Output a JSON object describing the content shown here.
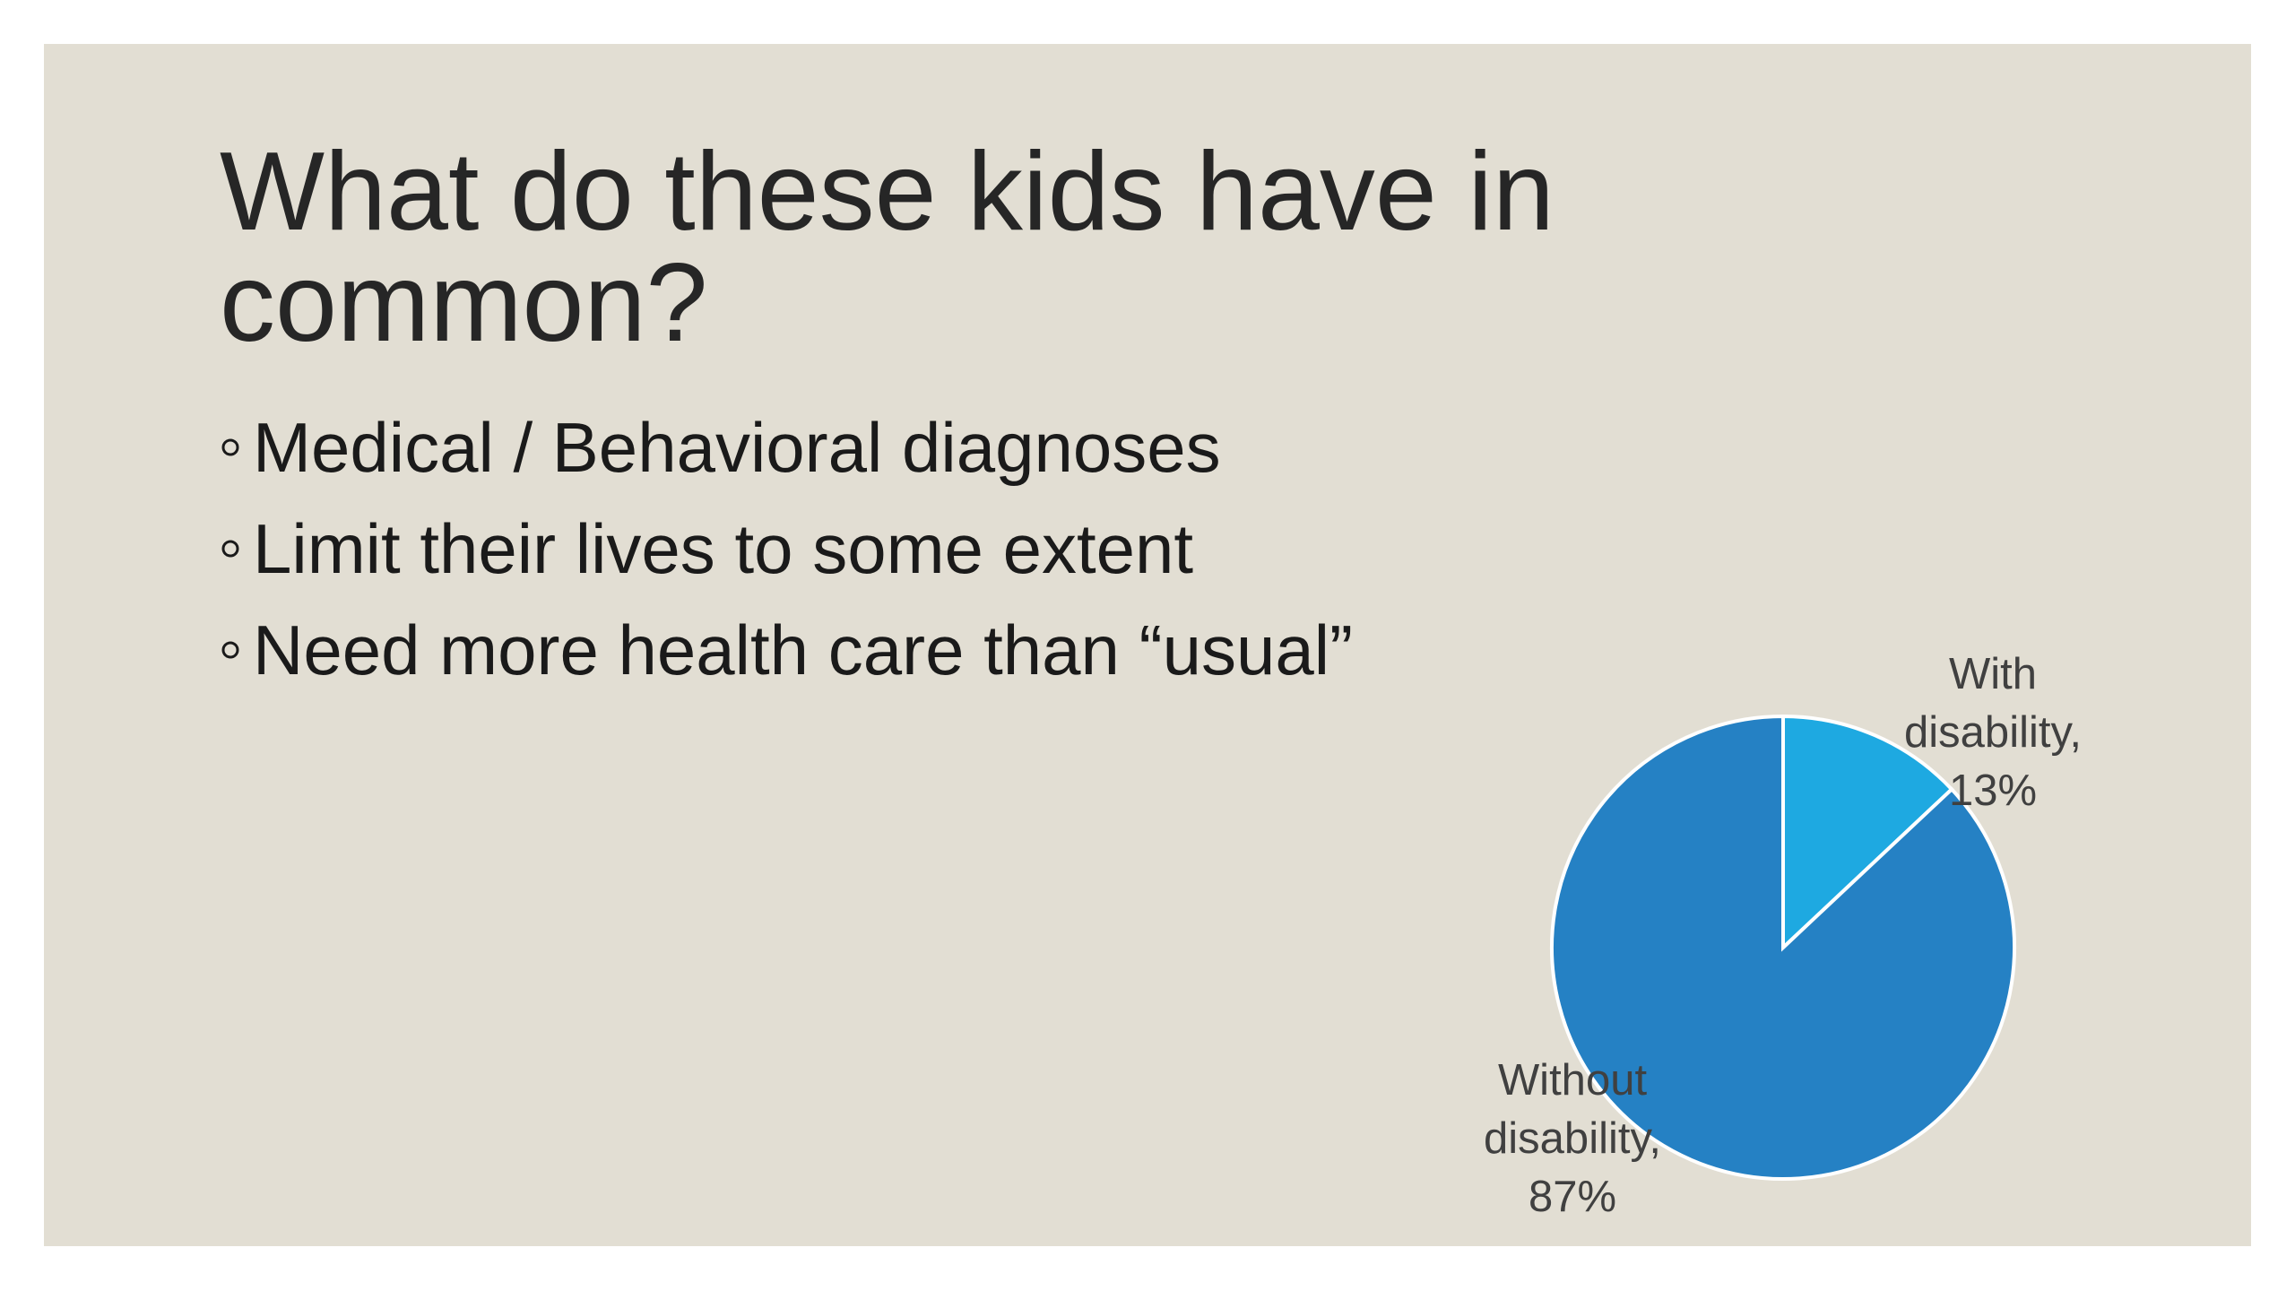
{
  "slide": {
    "title_lines": [
      "What do these kids have in",
      "common?"
    ],
    "bullets": [
      "Medical / Behavioral diagnoses",
      "Limit their lives to some extent",
      "Need more health care than “usual”"
    ]
  },
  "chart_data": {
    "type": "pie",
    "label_lines": [
      [
        "With",
        "disability,"
      ],
      [
        "Without",
        "disability,"
      ]
    ],
    "values": [
      13,
      87
    ],
    "value_labels": [
      "13%",
      "87%"
    ],
    "colors": [
      "#1ea9e1",
      "#2581c4"
    ]
  }
}
